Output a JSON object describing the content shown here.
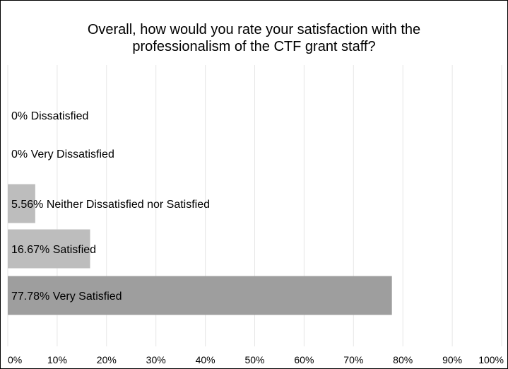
{
  "chart_data": {
    "type": "bar",
    "orientation": "horizontal",
    "title_lines": [
      "Overall, how would you rate your satisfaction with the",
      "professionalism of the CTF grant staff?"
    ],
    "categories": [
      "Dissatisfied",
      "Very Dissatisfied",
      "Neither Dissatisfied nor Satisfied",
      "Satisfied",
      "Very Satisfied"
    ],
    "values": [
      0,
      0,
      5.56,
      16.67,
      77.78
    ],
    "labels": [
      "0% Dissatisfied",
      "0% Very Dissatisfied",
      "5.56% Neither Dissatisfied nor Satisfied",
      "16.67% Satisfied",
      "77.78% Very Satisfied"
    ],
    "xlim": [
      0,
      100
    ],
    "xticks": [
      "0%",
      "10%",
      "20%",
      "30%",
      "40%",
      "50%",
      "60%",
      "70%",
      "80%",
      "90%",
      "100%"
    ],
    "grid": true,
    "colors": {
      "bar_light": "#bdbdbd",
      "bar_dark": "#9e9e9e",
      "grid": "#e6e6e6"
    }
  }
}
